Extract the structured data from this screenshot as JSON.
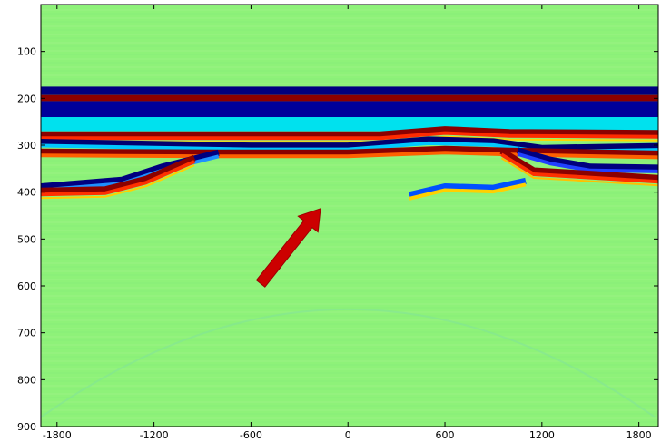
{
  "chart_data": {
    "type": "heatmap",
    "colormap": "jet",
    "background_color": "#8ef279",
    "x_ticks": [
      -1800,
      -1200,
      -600,
      0,
      600,
      1200,
      1800
    ],
    "y_ticks": [
      100,
      200,
      300,
      400,
      500,
      600,
      700,
      800,
      900
    ],
    "xlim": [
      -1900,
      1920
    ],
    "ylim": [
      900,
      0
    ],
    "y_axis_reversed": true,
    "bands": [
      {
        "y_start": 175,
        "y_end": 193,
        "color": "#00007f"
      },
      {
        "y_start": 193,
        "y_end": 206,
        "color": "#8b0000"
      },
      {
        "y_start": 206,
        "y_end": 240,
        "color": "#00009a"
      },
      {
        "y_start": 240,
        "y_end": 270,
        "color": "#00e1ee"
      }
    ],
    "reflectors": [
      {
        "name": "upper",
        "points": [
          [
            -1900,
            285
          ],
          [
            200,
            285
          ],
          [
            600,
            274
          ],
          [
            1000,
            280
          ],
          [
            1920,
            282
          ]
        ],
        "colors": [
          "#8b0000",
          "#ff2a00",
          "#ffd400"
        ]
      },
      {
        "name": "second",
        "points": [
          [
            -1900,
            297
          ],
          [
            -600,
            305
          ],
          [
            0,
            305
          ],
          [
            500,
            292
          ],
          [
            900,
            296
          ],
          [
            1200,
            310
          ],
          [
            1920,
            306
          ]
        ],
        "colors": [
          "#00006f",
          "#00c8ff"
        ]
      },
      {
        "name": "third",
        "points": [
          [
            -1900,
            318
          ],
          [
            -800,
            320
          ],
          [
            0,
            320
          ],
          [
            600,
            312
          ],
          [
            1000,
            316
          ],
          [
            1920,
            322
          ]
        ],
        "colors": [
          "#8b0000",
          "#ff6000"
        ]
      },
      {
        "name": "left-dipping",
        "points": [
          [
            -800,
            320
          ],
          [
            -1150,
            350
          ],
          [
            -1400,
            378
          ],
          [
            -1900,
            392
          ]
        ],
        "colors": [
          "#00007f",
          "#1e90ff"
        ]
      },
      {
        "name": "left-bottom",
        "points": [
          [
            -1900,
            405
          ],
          [
            -1500,
            402
          ],
          [
            -1250,
            380
          ],
          [
            -950,
            335
          ]
        ],
        "colors": [
          "#8b0000",
          "#ff3000",
          "#ffd000"
        ]
      },
      {
        "name": "right-dipping",
        "points": [
          [
            1050,
            315
          ],
          [
            1250,
            335
          ],
          [
            1500,
            350
          ],
          [
            1920,
            352
          ]
        ],
        "colors": [
          "#00007f",
          "#2040ff"
        ]
      },
      {
        "name": "right-lower",
        "points": [
          [
            950,
            320
          ],
          [
            1150,
            362
          ],
          [
            1450,
            368
          ],
          [
            1920,
            378
          ]
        ],
        "colors": [
          "#8b0000",
          "#ff3000",
          "#ffc000"
        ]
      },
      {
        "name": "middle-event",
        "points": [
          [
            380,
            410
          ],
          [
            600,
            392
          ],
          [
            900,
            395
          ],
          [
            1100,
            380
          ]
        ],
        "colors": [
          "#0050ff",
          "#ffd000"
        ]
      }
    ],
    "annotation": {
      "type": "arrow",
      "color": "#cc0000",
      "from": [
        -540,
        595
      ],
      "to": [
        -170,
        435
      ]
    }
  }
}
